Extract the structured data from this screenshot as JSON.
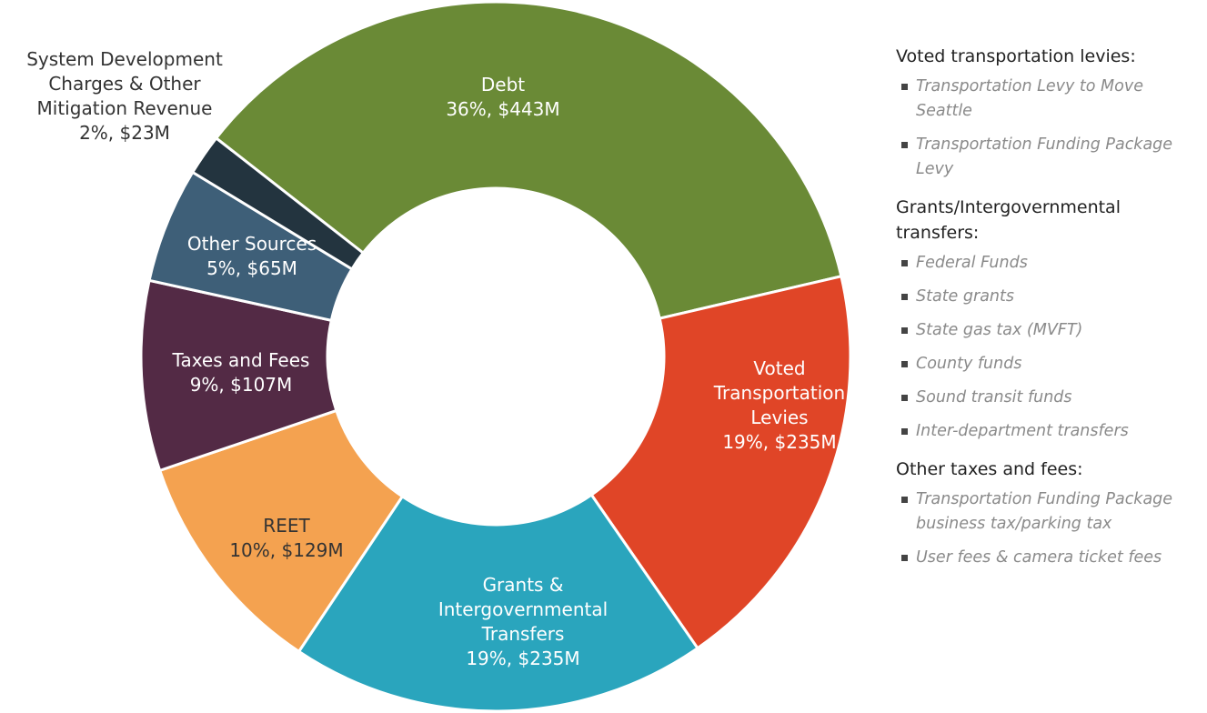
{
  "chart_data": {
    "type": "donut",
    "categories": [
      "Debt",
      "Voted Transportation Levies",
      "Grants & Intergovernmental Transfers",
      "REET",
      "Taxes and Fees",
      "Other Sources",
      "System Development Charges & Other Mitigation Revenue"
    ],
    "values": [
      443,
      235,
      235,
      129,
      107,
      65,
      23
    ],
    "value_labels": [
      "36%, $443M",
      "19%, $235M",
      "19%, $235M",
      "10%, $129M",
      "9%, $107M",
      "5%, $65M",
      "2%, $23M"
    ],
    "colors": [
      "#6a8a36",
      "#e04527",
      "#2aa5bd",
      "#f4a250",
      "#532a45",
      "#3e5f78",
      "#23343f"
    ]
  },
  "notes": [
    {
      "heading": "Voted transportation levies:",
      "items": [
        "Transportation Levy to Move Seattle",
        "Transportation Funding Package Levy"
      ]
    },
    {
      "heading": "Grants/Intergovernmental transfers:",
      "items": [
        "Federal Funds",
        "State grants",
        "State gas tax (MVFT)",
        "County funds",
        "Sound transit funds",
        "Inter-department transfers"
      ]
    },
    {
      "heading": "Other taxes and fees:",
      "items": [
        "Transportation Funding Package business tax/parking tax",
        "User fees & camera ticket fees"
      ]
    }
  ]
}
